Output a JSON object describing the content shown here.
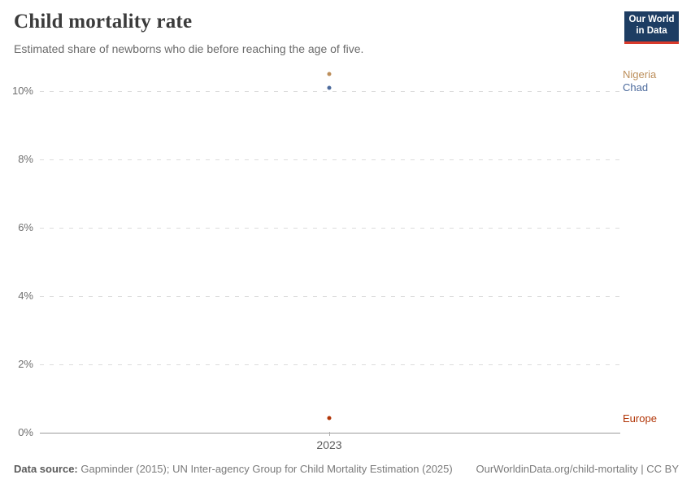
{
  "header": {
    "title": "Child mortality rate",
    "subtitle": "Estimated share of newborns who die before reaching the age of five.",
    "logo": {
      "line1": "Our World",
      "line2": "in Data",
      "bg_color": "#1d3d63",
      "accent_color": "#d93a2b"
    }
  },
  "chart_data": {
    "type": "scatter",
    "title": "Child mortality rate",
    "subtitle": "Estimated share of newborns who die before reaching the age of five.",
    "x_values": [
      2023
    ],
    "series": [
      {
        "name": "Nigeria",
        "color": "#BC8E5A",
        "values": [
          10.5
        ]
      },
      {
        "name": "Chad",
        "color": "#4C6A9C",
        "values": [
          10.1
        ]
      },
      {
        "name": "Europe",
        "color": "#B13507",
        "values": [
          0.42
        ]
      }
    ],
    "ylim": [
      0,
      10
    ],
    "yticks": [
      {
        "value": 0,
        "label": "0%"
      },
      {
        "value": 2,
        "label": "2%"
      },
      {
        "value": 4,
        "label": "4%"
      },
      {
        "value": 6,
        "label": "6%"
      },
      {
        "value": 8,
        "label": "8%"
      },
      {
        "value": 10,
        "label": "10%"
      }
    ],
    "xticks": [
      {
        "value": 2023,
        "label": "2023"
      }
    ],
    "grid": "horizontal-dashed",
    "legend_position": "right"
  },
  "footer": {
    "source_label": "Data source:",
    "source_text": " Gapminder (2015); UN Inter-agency Group for Child Mortality Estimation (2025)",
    "right_text": "OurWorldinData.org/child-mortality | CC BY"
  }
}
